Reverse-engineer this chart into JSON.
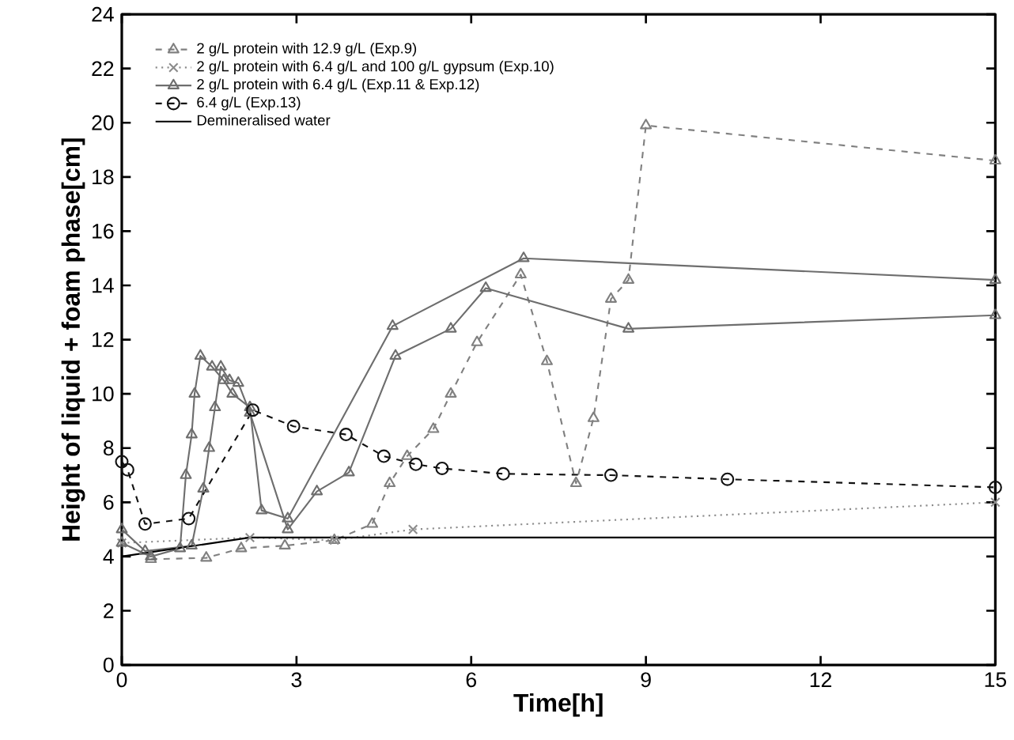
{
  "chart_data": {
    "type": "line",
    "xlabel": "Time[h]",
    "ylabel": "Height of liquid + foam phase[cm]",
    "xlim": [
      0,
      15
    ],
    "ylim": [
      0,
      24
    ],
    "xticks": [
      0,
      3,
      6,
      9,
      12,
      15
    ],
    "yticks": [
      0,
      2,
      4,
      6,
      8,
      10,
      12,
      14,
      16,
      18,
      20,
      22,
      24
    ],
    "grid": false,
    "legend": "top left",
    "series": [
      {
        "name": "2 g/L protein with 12.9 g/L (Exp.9)",
        "color": "#808080",
        "marker": "triangle",
        "line_style": "dashed",
        "x": [
          0.5,
          1.45,
          2.05,
          2.8,
          3.65,
          4.3,
          4.6,
          4.9,
          5.35,
          5.65,
          6.1,
          6.85,
          7.3,
          7.8,
          8.1,
          8.4,
          8.7,
          9.0,
          15
        ],
        "values": [
          3.9,
          3.95,
          4.3,
          4.4,
          4.6,
          5.2,
          6.7,
          7.7,
          8.7,
          10.0,
          11.9,
          14.4,
          11.2,
          6.7,
          9.1,
          13.5,
          14.2,
          19.9,
          18.6
        ]
      },
      {
        "name": "2 g/L protein with 6.4 g/L and 100 g/L gypsum (Exp.10)",
        "color": "#8c8c8c",
        "marker": "cross",
        "line_style": "dotted",
        "x": [
          0,
          2.2,
          3.65,
          5.0,
          15
        ],
        "values": [
          4.5,
          4.7,
          4.6,
          5.0,
          6.0
        ]
      },
      {
        "name": "2 g/L protein with 6.4 g/L (Exp.11 & Exp.12)",
        "color": "#6e6e6e",
        "marker": "triangle",
        "line_style": "solid",
        "x": [
          0,
          0.5,
          1.0,
          1.1,
          1.2,
          1.25,
          1.35,
          1.55,
          1.75,
          1.9,
          2.2,
          2.4,
          2.85,
          4.65,
          6.9,
          15
        ],
        "values": [
          4.5,
          4.0,
          4.3,
          7.0,
          8.5,
          10.0,
          11.4,
          11.0,
          10.5,
          10.0,
          9.5,
          5.7,
          5.4,
          12.5,
          15.0,
          14.2
        ]
      },
      {
        "color": "#6e6e6e",
        "marker": "triangle",
        "line_style": "solid",
        "x": [
          0,
          0.4,
          1.2,
          1.4,
          1.5,
          1.6,
          1.7,
          1.85,
          2.0,
          2.2,
          2.85,
          3.35,
          3.9,
          4.7,
          5.65,
          6.25,
          8.7,
          15
        ],
        "values": [
          5.0,
          4.2,
          4.4,
          6.5,
          8.0,
          9.5,
          11.0,
          10.5,
          10.4,
          9.3,
          5.0,
          6.4,
          7.1,
          11.4,
          12.4,
          13.9,
          12.4,
          12.9
        ]
      },
      {
        "name": "6.4 g/L (Exp.13)",
        "color": "#111111",
        "marker": "circle",
        "line_style": "dashed",
        "x": [
          0,
          0.1,
          0.4,
          1.15,
          2.25,
          2.95,
          3.85,
          4.5,
          5.05,
          5.5,
          6.55,
          8.4,
          10.4,
          15
        ],
        "values": [
          7.5,
          7.2,
          5.2,
          5.4,
          9.4,
          8.8,
          8.5,
          7.7,
          7.4,
          7.25,
          7.05,
          7.0,
          6.85,
          6.55
        ]
      },
      {
        "name": "Demineralised water",
        "color": "#000000",
        "marker": "none",
        "line_style": "solid",
        "x": [
          0,
          2.2,
          15
        ],
        "values": [
          4.0,
          4.7,
          4.7
        ]
      }
    ]
  }
}
